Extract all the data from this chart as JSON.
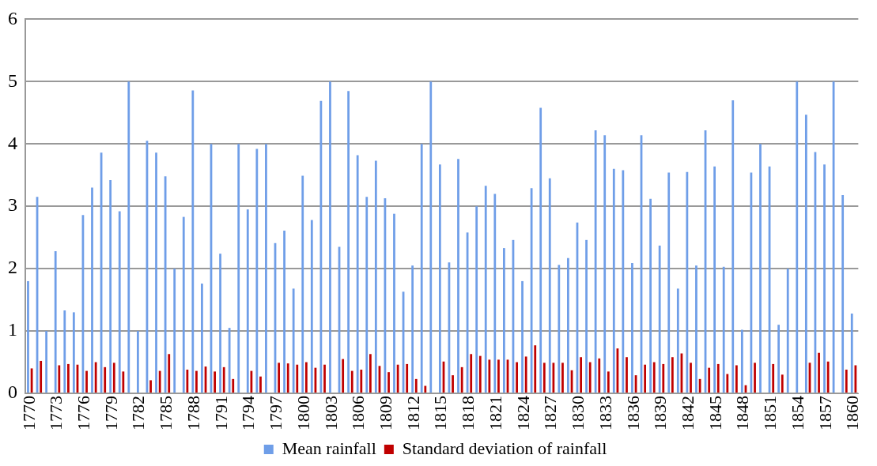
{
  "chart_data": {
    "type": "bar",
    "categories": [
      "1770",
      null,
      null,
      "1773",
      null,
      null,
      "1776",
      null,
      null,
      "1779",
      null,
      null,
      "1782",
      null,
      null,
      "1785",
      null,
      null,
      "1788",
      null,
      null,
      "1791",
      null,
      null,
      "1794",
      null,
      null,
      "1797",
      null,
      null,
      "1800",
      null,
      null,
      "1803",
      null,
      null,
      "1806",
      null,
      null,
      "1809",
      null,
      null,
      "1812",
      null,
      null,
      "1815",
      null,
      null,
      "1818",
      null,
      null,
      "1821",
      null,
      null,
      "1824",
      null,
      null,
      "1827",
      null,
      null,
      "1830",
      null,
      null,
      "1833",
      null,
      null,
      "1836",
      null,
      null,
      "1839",
      null,
      null,
      "1842",
      null,
      null,
      "1845",
      null,
      null,
      "1848",
      null,
      null,
      "1851",
      null,
      null,
      "1854",
      null,
      null,
      "1857",
      null,
      null,
      "1860"
    ],
    "series": [
      {
        "name": "Mean rainfall",
        "color": "#6f9ee8",
        "values": [
          1.8,
          3.15,
          1.0,
          2.28,
          1.33,
          1.3,
          2.86,
          3.3,
          3.86,
          3.42,
          2.92,
          5.0,
          1.0,
          4.05,
          3.86,
          3.48,
          2.0,
          2.83,
          4.86,
          1.76,
          4.0,
          2.24,
          1.05,
          4.0,
          2.95,
          3.92,
          4.0,
          2.41,
          2.61,
          1.68,
          3.49,
          2.78,
          4.69,
          5.0,
          2.35,
          4.85,
          3.82,
          3.15,
          3.73,
          3.13,
          2.88,
          1.63,
          2.05,
          4.0,
          5.0,
          3.67,
          2.1,
          3.76,
          2.58,
          3.0,
          3.33,
          3.2,
          2.33,
          2.46,
          1.8,
          3.29,
          4.58,
          3.45,
          2.06,
          2.17,
          2.74,
          2.46,
          4.22,
          4.14,
          3.6,
          3.58,
          2.09,
          4.14,
          3.12,
          2.37,
          3.54,
          1.68,
          3.55,
          2.05,
          4.22,
          3.64,
          2.03,
          4.7,
          1.02,
          3.54,
          4.0,
          3.64,
          1.1,
          2.0,
          5.0,
          4.47,
          3.87,
          3.67,
          5.0,
          3.18,
          1.28
        ]
      },
      {
        "name": "Standard deviation of rainfall",
        "color": "#c00000",
        "values": [
          0.4,
          0.52,
          null,
          0.45,
          0.47,
          0.46,
          0.36,
          0.5,
          0.42,
          0.49,
          0.35,
          null,
          null,
          0.21,
          0.36,
          0.63,
          null,
          0.38,
          0.36,
          0.43,
          0.35,
          0.42,
          0.23,
          null,
          0.36,
          0.27,
          null,
          0.49,
          0.48,
          0.46,
          0.5,
          0.41,
          0.46,
          null,
          0.55,
          0.36,
          0.38,
          0.63,
          0.44,
          0.34,
          0.46,
          0.47,
          0.23,
          0.12,
          null,
          0.51,
          0.29,
          0.42,
          0.63,
          0.6,
          0.54,
          0.54,
          0.54,
          0.5,
          0.59,
          0.77,
          0.49,
          0.49,
          0.49,
          0.37,
          0.58,
          0.5,
          0.56,
          0.35,
          0.72,
          0.58,
          0.29,
          0.46,
          0.5,
          0.47,
          0.58,
          0.64,
          0.49,
          0.23,
          0.41,
          0.47,
          0.31,
          0.45,
          0.13,
          0.49,
          null,
          0.47,
          0.3,
          null,
          null,
          0.49,
          0.65,
          0.51,
          null,
          0.38,
          0.45
        ]
      }
    ],
    "ylim": [
      0,
      6
    ],
    "yticks": [
      0,
      1,
      2,
      3,
      4,
      5,
      6
    ],
    "grid": "y",
    "legend": "bottom"
  }
}
